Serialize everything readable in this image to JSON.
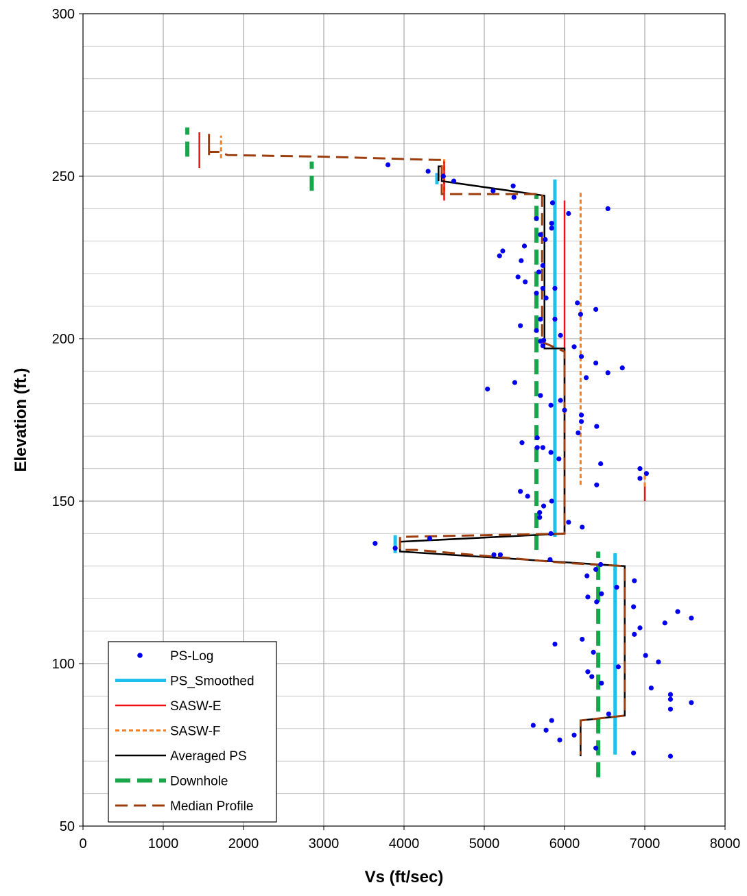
{
  "chart_data": {
    "type": "scatter",
    "xlabel": "Vs (ft/sec)",
    "ylabel": "Elevation (ft.)",
    "xlim": [
      0,
      8000
    ],
    "ylim": [
      50,
      300
    ],
    "x_ticks": [
      0,
      1000,
      2000,
      3000,
      4000,
      5000,
      6000,
      7000,
      8000
    ],
    "y_ticks": [
      50,
      100,
      150,
      200,
      250,
      300
    ],
    "grid": {
      "x_major": 1000,
      "y_major": 50,
      "y_minor": 10
    },
    "legend_position": "bottom-left",
    "colors": {
      "ps_log": "#0000ee",
      "ps_smoothed": "#1ec0ee",
      "sasw_e": "#ee1111",
      "sasw_f": "#f57d22",
      "averaged_ps": "#000000",
      "downhole": "#17a64a",
      "median_profile": "#9c3d0e",
      "grid": "#9a9a9a"
    },
    "series": [
      {
        "name": "PS-Log",
        "style": "markers",
        "points": [
          [
            3800,
            253.5
          ],
          [
            4300,
            251.5
          ],
          [
            4490,
            250
          ],
          [
            4620,
            248.5
          ],
          [
            5110,
            245.5
          ],
          [
            5360,
            247
          ],
          [
            5370,
            243.5
          ],
          [
            5850,
            241.8
          ],
          [
            6540,
            240
          ],
          [
            6050,
            238.5
          ],
          [
            5650,
            237
          ],
          [
            5840,
            235.5
          ],
          [
            5840,
            234
          ],
          [
            5700,
            232
          ],
          [
            5760,
            230.5
          ],
          [
            5500,
            228.5
          ],
          [
            5230,
            227
          ],
          [
            5190,
            225.5
          ],
          [
            5460,
            224
          ],
          [
            5730,
            222.5
          ],
          [
            5680,
            220.5
          ],
          [
            5420,
            219
          ],
          [
            5510,
            217.5
          ],
          [
            5730,
            215.5
          ],
          [
            5880,
            215.5
          ],
          [
            5650,
            214
          ],
          [
            5770,
            212.5
          ],
          [
            6160,
            211
          ],
          [
            6390,
            209
          ],
          [
            6200,
            207.5
          ],
          [
            5700,
            206
          ],
          [
            5880,
            206
          ],
          [
            5450,
            204
          ],
          [
            5650,
            202.5
          ],
          [
            5950,
            201
          ],
          [
            5700,
            199.2
          ],
          [
            5740,
            199.5
          ],
          [
            6120,
            197.5
          ],
          [
            5730,
            197.8
          ],
          [
            6210,
            194.5
          ],
          [
            6390,
            192.5
          ],
          [
            6720,
            191
          ],
          [
            6540,
            189.5
          ],
          [
            6270,
            188
          ],
          [
            5380,
            186.5
          ],
          [
            5040,
            184.5
          ],
          [
            5700,
            182.5
          ],
          [
            5950,
            181
          ],
          [
            5830,
            179.5
          ],
          [
            6000,
            178
          ],
          [
            6210,
            176.5
          ],
          [
            6210,
            174.5
          ],
          [
            6400,
            173
          ],
          [
            6170,
            171
          ],
          [
            5660,
            169.5
          ],
          [
            5470,
            168
          ],
          [
            5660,
            166.5
          ],
          [
            5730,
            166.5
          ],
          [
            5830,
            165
          ],
          [
            5930,
            163
          ],
          [
            6450,
            161.5
          ],
          [
            6940,
            160
          ],
          [
            7020,
            158.5
          ],
          [
            6940,
            157
          ],
          [
            6400,
            155
          ],
          [
            5450,
            153
          ],
          [
            5540,
            151.5
          ],
          [
            5840,
            150
          ],
          [
            5740,
            148.5
          ],
          [
            5690,
            146.5
          ],
          [
            5690,
            145
          ],
          [
            6050,
            143.5
          ],
          [
            6220,
            142
          ],
          [
            5830,
            140
          ],
          [
            4320,
            138.5
          ],
          [
            3640,
            137
          ],
          [
            3890,
            135.5
          ],
          [
            5120,
            133.5
          ],
          [
            5200,
            133.5
          ],
          [
            5820,
            132
          ],
          [
            6450,
            130.5
          ],
          [
            6390,
            129
          ],
          [
            6280,
            127
          ],
          [
            6870,
            125.5
          ],
          [
            6650,
            123.5
          ],
          [
            6460,
            121.5
          ],
          [
            6290,
            120.5
          ],
          [
            6400,
            119
          ],
          [
            6860,
            117.5
          ],
          [
            7410,
            116
          ],
          [
            7580,
            114
          ],
          [
            7250,
            112.5
          ],
          [
            6940,
            111
          ],
          [
            6870,
            109
          ],
          [
            6220,
            107.5
          ],
          [
            5880,
            106
          ],
          [
            6360,
            103.5
          ],
          [
            7010,
            102.5
          ],
          [
            7170,
            100.5
          ],
          [
            6670,
            99
          ],
          [
            6290,
            97.5
          ],
          [
            6340,
            96
          ],
          [
            6460,
            94
          ],
          [
            7080,
            92.5
          ],
          [
            7320,
            90.5
          ],
          [
            7320,
            89
          ],
          [
            7580,
            88
          ],
          [
            7320,
            86
          ],
          [
            6550,
            84.5
          ],
          [
            5840,
            82.5
          ],
          [
            5610,
            81
          ],
          [
            5770,
            79.5
          ],
          [
            6120,
            78
          ],
          [
            5940,
            76.5
          ],
          [
            6390,
            74
          ],
          [
            6860,
            72.5
          ],
          [
            7320,
            71.5
          ]
        ]
      },
      {
        "name": "PS_Smoothed",
        "style": "segments",
        "segments": [
          [
            [
              4410,
              247.5
            ],
            [
              4410,
              251
            ]
          ],
          [
            [
              5880,
              139
            ],
            [
              5880,
              249
            ]
          ],
          [
            [
              3890,
              134
            ],
            [
              3890,
              139.5
            ]
          ],
          [
            [
              6630,
              72
            ],
            [
              6630,
              134
            ]
          ]
        ]
      },
      {
        "name": "SASW-E",
        "style": "segments",
        "segments": [
          [
            [
              1450,
              252.5
            ],
            [
              1450,
              263.5
            ]
          ],
          [
            [
              4500,
              242.5
            ],
            [
              4500,
              254.5
            ]
          ],
          [
            [
              6000,
              140
            ],
            [
              6000,
              242.5
            ]
          ],
          [
            [
              7000,
              150
            ],
            [
              7000,
              154.5
            ]
          ]
        ]
      },
      {
        "name": "SASW-F",
        "style": "segments",
        "segments": [
          [
            [
              1720,
              255.5
            ],
            [
              1720,
              262.5
            ]
          ],
          [
            [
              4500,
              245.5
            ],
            [
              4500,
              255.5
            ]
          ],
          [
            [
              6200,
              155
            ],
            [
              6200,
              245.5
            ]
          ],
          [
            [
              7000,
              154.5
            ],
            [
              7000,
              158
            ]
          ]
        ]
      },
      {
        "name": "Averaged PS",
        "style": "polyline",
        "points": [
          [
            4430,
            248.5
          ],
          [
            4430,
            253
          ],
          [
            4470,
            253
          ],
          [
            4470,
            248.5
          ],
          [
            5750,
            244
          ],
          [
            5750,
            197
          ],
          [
            6000,
            197
          ],
          [
            6000,
            140
          ],
          [
            3950,
            137.5
          ],
          [
            3950,
            134.5
          ],
          [
            6750,
            130
          ],
          [
            6750,
            84
          ],
          [
            6200,
            82.5
          ],
          [
            6200,
            71.5
          ]
        ]
      },
      {
        "name": "Downhole",
        "style": "segments",
        "segments": [
          [
            [
              1300,
              256
            ],
            [
              1300,
              265
            ]
          ],
          [
            [
              2850,
              245.5
            ],
            [
              2850,
              254.5
            ]
          ],
          [
            [
              5650,
              135
            ],
            [
              5650,
              244.5
            ]
          ],
          [
            [
              6420,
              65
            ],
            [
              6420,
              134.5
            ]
          ]
        ]
      },
      {
        "name": "Median Profile",
        "style": "polyline",
        "points": [
          [
            1570,
            256.5
          ],
          [
            1570,
            263
          ],
          [
            1570,
            257.5
          ],
          [
            1700,
            257.5
          ],
          [
            1800,
            256.5
          ],
          [
            3000,
            256
          ],
          [
            4400,
            255
          ],
          [
            4470,
            255
          ],
          [
            4470,
            244.5
          ],
          [
            5720,
            244.5
          ],
          [
            5720,
            199
          ],
          [
            6000,
            196
          ],
          [
            6000,
            140
          ],
          [
            3950,
            139
          ],
          [
            3950,
            135
          ],
          [
            4150,
            135
          ],
          [
            6000,
            131
          ],
          [
            6750,
            130
          ],
          [
            6750,
            84
          ],
          [
            6200,
            82.5
          ],
          [
            6200,
            72
          ]
        ]
      }
    ]
  }
}
